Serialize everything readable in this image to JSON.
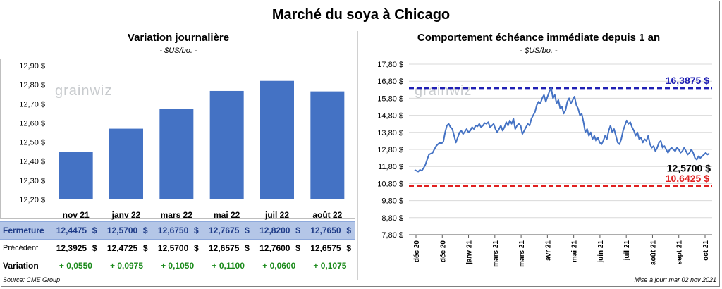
{
  "main_title": "Marché du soya à Chicago",
  "chart_data": [
    {
      "type": "bar",
      "title": "Variation journalière",
      "subtitle": "- $US/bo. -",
      "categories": [
        "nov 21",
        "janv 22",
        "mars 22",
        "mai 22",
        "juil 22",
        "août 22"
      ],
      "values": [
        12.4475,
        12.57,
        12.675,
        12.7675,
        12.82,
        12.765
      ],
      "ylim": [
        12.2,
        12.9
      ],
      "yticks": [
        "12,20 $",
        "12,30 $",
        "12,40 $",
        "12,50 $",
        "12,60 $",
        "12,70 $",
        "12,80 $",
        "12,90 $"
      ],
      "grid": false,
      "color": "#4472c4",
      "watermark": "grainwiz"
    },
    {
      "type": "line",
      "title": "Comportement  échéance immédiate depuis 1 an",
      "subtitle": "- $US/bo. -",
      "ylim": [
        7.8,
        17.8
      ],
      "yticks": [
        "7,80 $",
        "8,80 $",
        "9,80 $",
        "10,80 $",
        "11,80 $",
        "12,80 $",
        "13,80 $",
        "14,80 $",
        "15,80 $",
        "16,80 $",
        "17,80 $"
      ],
      "xticks": [
        "déc 20",
        "déc 20",
        "janv 21",
        "mars 21",
        "mars 21",
        "avr 21",
        "mai 21",
        "juin 21",
        "juil 21",
        "août 21",
        "sept 21",
        "oct 21"
      ],
      "color": "#4472c4",
      "watermark": "grainwiz",
      "reference_lines": [
        {
          "label": "16,3875 $",
          "value": 16.3875,
          "color": "#1f1fb4"
        },
        {
          "label": "10,6425 $",
          "value": 10.6425,
          "color": "#e02020"
        }
      ],
      "last_value_label": "12,5700 $",
      "y": [
        11.6,
        11.55,
        11.5,
        11.6,
        11.55,
        11.7,
        11.9,
        12.2,
        12.5,
        12.55,
        12.6,
        12.8,
        13.0,
        13.1,
        13.2,
        13.15,
        13.25,
        13.8,
        14.2,
        14.3,
        14.1,
        14.0,
        13.6,
        13.2,
        13.5,
        13.8,
        13.9,
        13.7,
        13.85,
        14.0,
        13.8,
        13.9,
        14.1,
        14.0,
        14.2,
        14.15,
        14.3,
        14.1,
        14.2,
        14.35,
        14.3,
        14.4,
        14.1,
        14.2,
        14.3,
        14.0,
        13.8,
        14.0,
        14.2,
        13.9,
        14.1,
        14.4,
        14.2,
        14.5,
        14.3,
        14.6,
        14.0,
        14.2,
        14.3,
        14.2,
        13.7,
        13.9,
        14.1,
        14.3,
        14.2,
        14.6,
        14.8,
        15.0,
        15.4,
        15.6,
        15.5,
        15.8,
        16.0,
        15.6,
        15.9,
        16.2,
        16.4,
        15.8,
        16.0,
        15.5,
        15.7,
        15.2,
        15.3,
        14.9,
        15.1,
        15.6,
        15.8,
        15.5,
        15.7,
        15.9,
        15.4,
        15.2,
        14.8,
        14.9,
        14.4,
        13.8,
        14.0,
        13.6,
        13.8,
        13.4,
        13.6,
        13.3,
        13.5,
        13.2,
        13.1,
        13.3,
        13.6,
        13.4,
        13.9,
        14.2,
        13.8,
        14.0,
        13.6,
        13.2,
        13.1,
        13.4,
        13.9,
        14.2,
        14.5,
        14.3,
        14.4,
        14.1,
        13.9,
        13.6,
        13.8,
        13.4,
        13.5,
        13.2,
        13.4,
        13.3,
        13.6,
        13.1,
        12.9,
        13.0,
        12.7,
        12.9,
        13.2,
        13.3,
        12.9,
        13.0,
        12.8,
        12.6,
        12.8,
        12.9,
        12.8,
        12.7,
        12.9,
        12.8,
        12.6,
        12.7,
        12.9,
        12.7,
        12.5,
        12.6,
        12.8,
        12.6,
        12.3,
        12.2,
        12.4,
        12.3,
        12.4,
        12.5,
        12.6,
        12.5,
        12.57
      ]
    }
  ],
  "table": {
    "rows": [
      {
        "label": "Fermeture",
        "cells": [
          [
            "12,4475",
            "$"
          ],
          [
            "12,5700",
            "$"
          ],
          [
            "12,6750",
            "$"
          ],
          [
            "12,7675",
            "$"
          ],
          [
            "12,8200",
            "$"
          ],
          [
            "12,7650",
            "$"
          ]
        ]
      },
      {
        "label": "Précédent",
        "cells": [
          [
            "12,3925",
            "$"
          ],
          [
            "12,4725",
            "$"
          ],
          [
            "12,5700",
            "$"
          ],
          [
            "12,6575",
            "$"
          ],
          [
            "12,7600",
            "$"
          ],
          [
            "12,6575",
            "$"
          ]
        ]
      }
    ],
    "variation_label": "Variation",
    "variations": [
      "+ 0,0550",
      "+ 0,0975",
      "+ 0,1050",
      "+ 0,1100",
      "+ 0,0600",
      "+ 0,1075"
    ]
  },
  "source": "Source: CME Group",
  "updated": "Mise à jour: mar 02 nov 2021"
}
